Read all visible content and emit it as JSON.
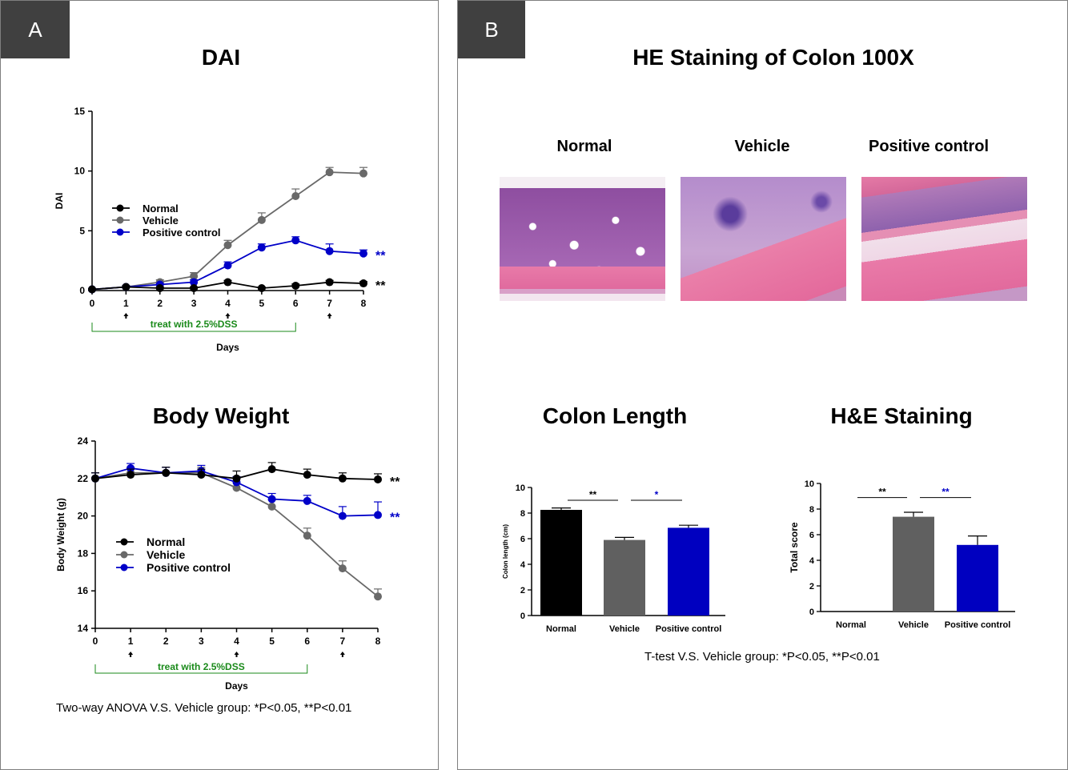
{
  "panel_a": {
    "label": "A",
    "dai_title": "DAI",
    "bw_title": "Body Weight",
    "footnote": "Two-way ANOVA V.S. Vehicle group: *P<0.05,  **P<0.01"
  },
  "panel_b": {
    "label": "B",
    "he_title": "HE Staining of Colon 100X",
    "image_labels": [
      "Normal",
      "Vehicle",
      "Positive control"
    ],
    "colon_title": "Colon Length",
    "hescore_title": "H&E Staining",
    "footnote": "T-test V.S. Vehicle  group: *P<0.05,  **P<0.01"
  },
  "colors": {
    "normal": "#000000",
    "vehicle": "#696969",
    "positive": "#0000c8",
    "bar_normal": "#000000",
    "bar_vehicle": "#606060",
    "bar_positive": "#0000c0",
    "dss_green": "#1a8a1a"
  },
  "chart_data": [
    {
      "id": "dai",
      "type": "line",
      "title": "DAI",
      "xlabel": "Days",
      "ylabel": "DAI",
      "x": [
        0,
        1,
        2,
        3,
        4,
        5,
        6,
        7,
        8
      ],
      "xlim": [
        0,
        8
      ],
      "ylim": [
        0,
        15
      ],
      "yticks": [
        0,
        5,
        10,
        15
      ],
      "series": [
        {
          "name": "Normal",
          "key": "normal",
          "values": [
            0.1,
            0.3,
            0.2,
            0.2,
            0.7,
            0.2,
            0.4,
            0.7,
            0.6
          ],
          "err": [
            0.05,
            0.1,
            0.1,
            0.1,
            0.15,
            0.1,
            0.15,
            0.15,
            0.15
          ],
          "sig": "**"
        },
        {
          "name": "Vehicle",
          "key": "vehicle",
          "values": [
            0.1,
            0.3,
            0.7,
            1.2,
            3.8,
            5.9,
            7.9,
            9.9,
            9.8
          ],
          "err": [
            0.05,
            0.1,
            0.2,
            0.3,
            0.4,
            0.6,
            0.6,
            0.4,
            0.5
          ],
          "sig": ""
        },
        {
          "name": "Positive control",
          "key": "positive",
          "values": [
            0.1,
            0.3,
            0.5,
            0.7,
            2.1,
            3.6,
            4.2,
            3.3,
            3.1
          ],
          "err": [
            0.05,
            0.1,
            0.1,
            0.2,
            0.3,
            0.3,
            0.3,
            0.6,
            0.3
          ],
          "sig": "**"
        }
      ],
      "arrow_days": [
        1,
        4,
        7
      ],
      "treatment": {
        "label": "treat with 2.5%DSS",
        "from": 0,
        "to": 6
      }
    },
    {
      "id": "body_weight",
      "type": "line",
      "title": "Body Weight",
      "xlabel": "Days",
      "ylabel": "Body Weight  (g)",
      "x": [
        0,
        1,
        2,
        3,
        4,
        5,
        6,
        7,
        8
      ],
      "xlim": [
        0,
        8
      ],
      "ylim": [
        14,
        24
      ],
      "yticks": [
        14,
        16,
        18,
        20,
        22,
        24
      ],
      "series": [
        {
          "name": "Normal",
          "key": "normal",
          "values": [
            22.0,
            22.2,
            22.3,
            22.2,
            22.0,
            22.5,
            22.2,
            22.0,
            21.95
          ],
          "err": [
            0.3,
            0.3,
            0.3,
            0.3,
            0.4,
            0.35,
            0.3,
            0.3,
            0.3
          ],
          "sig": "**"
        },
        {
          "name": "Vehicle",
          "key": "vehicle",
          "values": [
            22.0,
            22.3,
            22.3,
            22.3,
            21.5,
            20.5,
            18.95,
            17.2,
            15.7
          ],
          "err": [
            0.3,
            0.3,
            0.3,
            0.3,
            0.3,
            0.35,
            0.4,
            0.4,
            0.4
          ],
          "sig": ""
        },
        {
          "name": "Positive control",
          "key": "positive",
          "values": [
            22.0,
            22.55,
            22.3,
            22.4,
            21.8,
            20.9,
            20.8,
            20.0,
            20.05
          ],
          "err": [
            0.3,
            0.25,
            0.3,
            0.3,
            0.3,
            0.3,
            0.3,
            0.5,
            0.7
          ],
          "sig": "**"
        }
      ],
      "arrow_days": [
        1,
        4,
        7
      ],
      "treatment": {
        "label": "treat with 2.5%DSS",
        "from": 0,
        "to": 6
      }
    },
    {
      "id": "colon_length",
      "type": "bar",
      "title": "Colon Length",
      "ylabel": "Colon length (cm)",
      "categories": [
        "Normal",
        "Vehicle",
        "Positive control"
      ],
      "keys": [
        "bar_normal",
        "bar_vehicle",
        "bar_positive"
      ],
      "values": [
        8.25,
        5.9,
        6.85
      ],
      "err": [
        0.15,
        0.2,
        0.2
      ],
      "ylim": [
        0,
        10
      ],
      "yticks": [
        0,
        2,
        4,
        6,
        8,
        10
      ],
      "significance": [
        {
          "from": 0,
          "to": 1,
          "label": "**",
          "level": 9.0,
          "color": "black"
        },
        {
          "from": 1,
          "to": 2,
          "label": "*",
          "level": 9.0,
          "color": "blue"
        }
      ]
    },
    {
      "id": "he_score",
      "type": "bar",
      "title": "H&E Staining",
      "ylabel": "Total score",
      "categories": [
        "Normal",
        "Vehicle",
        "Positive control"
      ],
      "keys": [
        "bar_normal",
        "bar_vehicle",
        "bar_positive"
      ],
      "values": [
        0,
        7.4,
        5.2
      ],
      "err": [
        0,
        0.35,
        0.7
      ],
      "ylim": [
        0,
        10
      ],
      "yticks": [
        0,
        2,
        4,
        6,
        8,
        10
      ],
      "significance": [
        {
          "from": 0,
          "to": 1,
          "label": "**",
          "level": 8.9,
          "color": "black"
        },
        {
          "from": 1,
          "to": 2,
          "label": "**",
          "level": 8.9,
          "color": "blue"
        }
      ]
    }
  ]
}
